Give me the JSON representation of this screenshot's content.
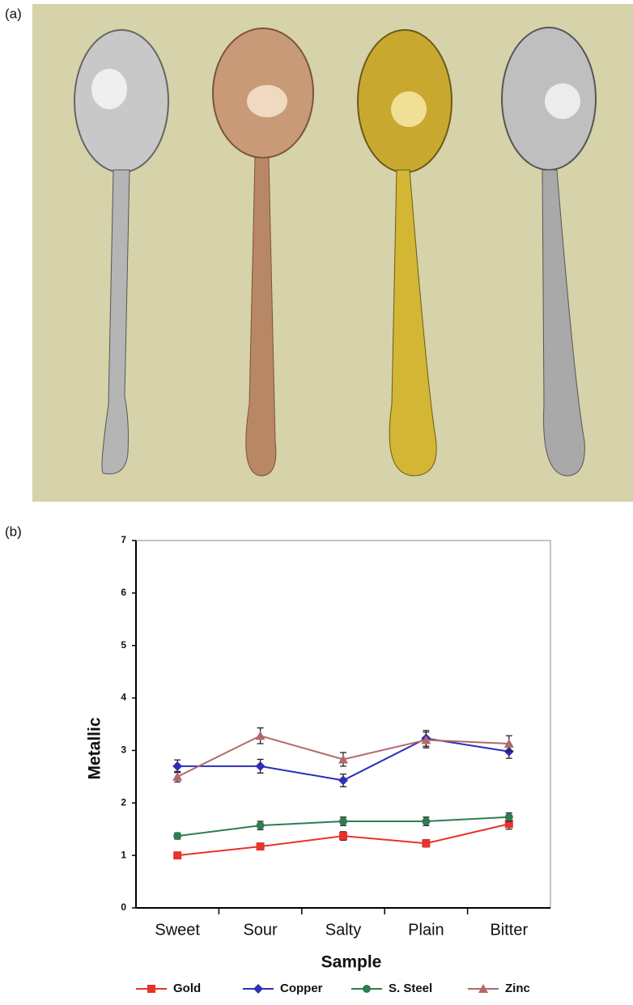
{
  "panel_labels": [
    "(a)",
    "(b)"
  ],
  "chart_data": {
    "type": "line",
    "x_label": "Sample",
    "y_label": "Metallic",
    "categories": [
      "Sweet",
      "Sour",
      "Salty",
      "Plain",
      "Bitter"
    ],
    "ylim": [
      0,
      7
    ],
    "yticks": [
      0,
      1,
      2,
      3,
      4,
      5,
      6,
      7
    ],
    "legend": "bottom",
    "series": [
      {
        "name": "Gold",
        "color": "#e8322b",
        "marker": "square",
        "values": [
          1.0,
          1.17,
          1.37,
          1.23,
          1.6
        ],
        "errors": [
          0.05,
          0.06,
          0.08,
          0.07,
          0.1
        ]
      },
      {
        "name": "Copper",
        "color": "#2e2eb8",
        "marker": "diamond",
        "values": [
          2.7,
          2.7,
          2.43,
          3.23,
          2.98
        ],
        "errors": [
          0.12,
          0.13,
          0.12,
          0.15,
          0.13
        ]
      },
      {
        "name": "S. Steel",
        "color": "#2e7d4f",
        "marker": "circle",
        "values": [
          1.37,
          1.57,
          1.65,
          1.65,
          1.73
        ],
        "errors": [
          0.06,
          0.08,
          0.08,
          0.08,
          0.08
        ]
      },
      {
        "name": "Zinc",
        "color": "#b06a6a",
        "marker": "triangle",
        "values": [
          2.5,
          3.28,
          2.83,
          3.2,
          3.13
        ],
        "errors": [
          0.1,
          0.15,
          0.13,
          0.15,
          0.15
        ]
      }
    ]
  }
}
